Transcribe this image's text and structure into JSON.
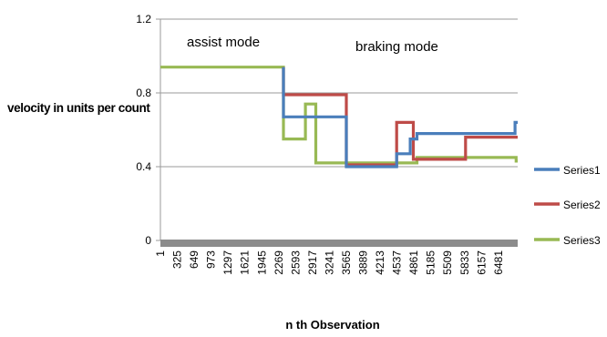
{
  "chart_data": {
    "type": "line",
    "title": "",
    "xlabel": "n th Observation",
    "ylabel": "velocity in units per count",
    "ylim": [
      0,
      1.2
    ],
    "yticks": [
      "0",
      "0.4",
      "0.8",
      "1.2"
    ],
    "xlim": [
      1,
      6850
    ],
    "xticks": [
      "1",
      "325",
      "649",
      "973",
      "1297",
      "1621",
      "1945",
      "2269",
      "2593",
      "2917",
      "3241",
      "3565",
      "3889",
      "4213",
      "4537",
      "4861",
      "5185",
      "5509",
      "5833",
      "6157",
      "6481"
    ],
    "grid": true,
    "legend_position": "right",
    "annotations": [
      {
        "text": "assist mode"
      },
      {
        "text": "braking mode"
      }
    ],
    "series": [
      {
        "name": "Series1",
        "color": "#4a7ebb",
        "x": [
          2360,
          2360,
          3565,
          3565,
          4530,
          4530,
          4790,
          4790,
          4920,
          4920,
          6800,
          6800,
          6850
        ],
        "y": [
          0.94,
          0.67,
          0.67,
          0.4,
          0.4,
          0.47,
          0.47,
          0.55,
          0.55,
          0.58,
          0.58,
          0.64,
          0.64
        ]
      },
      {
        "name": "Series2",
        "color": "#be4b48",
        "x": [
          2360,
          2360,
          3565,
          3565,
          4530,
          4530,
          4850,
          4850,
          5850,
          5850,
          6850
        ],
        "y": [
          0.94,
          0.79,
          0.79,
          0.41,
          0.41,
          0.64,
          0.64,
          0.44,
          0.44,
          0.56,
          0.56
        ]
      },
      {
        "name": "Series3",
        "color": "#98b954",
        "x": [
          1,
          2360,
          2360,
          2780,
          2780,
          2980,
          2980,
          4920,
          4920,
          6820,
          6820,
          6850
        ],
        "y": [
          0.94,
          0.94,
          0.55,
          0.55,
          0.74,
          0.74,
          0.42,
          0.42,
          0.45,
          0.45,
          0.43,
          0.43
        ]
      }
    ]
  }
}
